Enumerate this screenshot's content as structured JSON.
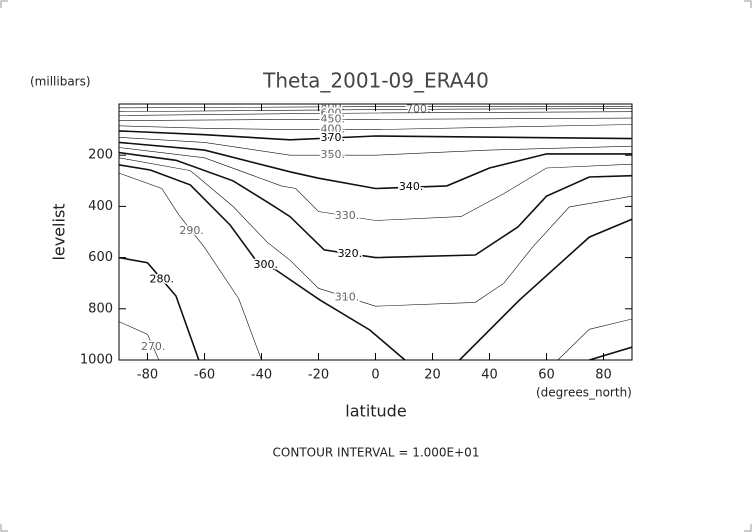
{
  "chart_data": {
    "type": "contour",
    "title": "Theta_2001-09_ERA40",
    "y_units": "(millibars)",
    "ylabel": "levelist",
    "xlabel": "latitude",
    "x_units": "(degrees_north)",
    "footnote": "CONTOUR INTERVAL = 1.000E+01",
    "xlim": [
      -90,
      90
    ],
    "xticks": [
      -80,
      -60,
      -40,
      -20,
      0,
      20,
      40,
      60,
      80
    ],
    "ylim": [
      1000,
      0
    ],
    "yticks": [
      200,
      400,
      600,
      800,
      1000
    ],
    "color": "#111",
    "levels": [
      800,
      700,
      600,
      450,
      400,
      370,
      350,
      340,
      330,
      320,
      310,
      300,
      290,
      280,
      270
    ],
    "level_labels": [
      "800.",
      "700.",
      "600.",
      "450.",
      "400.",
      "370.",
      "350.",
      "340.",
      "330.",
      "320.",
      "310.",
      "300.",
      "290.",
      "280.",
      "270."
    ],
    "bold": [
      false,
      false,
      false,
      false,
      false,
      true,
      false,
      true,
      false,
      true,
      false,
      true,
      false,
      true,
      false
    ],
    "contours": [
      {
        "lat": [
          -90,
          -30,
          0,
          90
        ],
        "p": [
          15,
          12,
          10,
          10
        ]
      },
      {
        "lat": [
          -90,
          0,
          30,
          90
        ],
        "p": [
          30,
          22,
          20,
          18
        ]
      },
      {
        "lat": [
          -90,
          -30,
          0,
          90
        ],
        "p": [
          45,
          38,
          35,
          30
        ]
      },
      {
        "lat": [
          -90,
          -30,
          0,
          90
        ],
        "p": [
          65,
          60,
          60,
          55
        ]
      },
      {
        "lat": [
          -90,
          -60,
          -30,
          0,
          90
        ],
        "p": [
          85,
          95,
          100,
          100,
          80
        ]
      },
      {
        "lat": [
          -90,
          -60,
          -30,
          0,
          90
        ],
        "p": [
          105,
          120,
          140,
          125,
          135
        ]
      },
      {
        "lat": [
          -90,
          -60,
          -30,
          0,
          40,
          90
        ],
        "p": [
          130,
          150,
          200,
          200,
          180,
          165
        ]
      },
      {
        "lat": [
          -90,
          -60,
          -30,
          -20,
          0,
          25,
          40,
          60,
          90
        ],
        "p": [
          150,
          180,
          265,
          290,
          330,
          320,
          250,
          195,
          195
        ]
      },
      {
        "lat": [
          -90,
          -60,
          -33,
          -28,
          -20,
          0,
          30,
          45,
          60,
          90
        ],
        "p": [
          170,
          210,
          320,
          330,
          420,
          455,
          440,
          350,
          250,
          235
        ]
      },
      {
        "lat": [
          -90,
          -70,
          -50,
          -37,
          -30,
          -18,
          0,
          35,
          50,
          60,
          75,
          90
        ],
        "p": [
          190,
          220,
          300,
          390,
          440,
          570,
          600,
          590,
          480,
          360,
          285,
          280
        ]
      },
      {
        "lat": [
          -90,
          -65,
          -50,
          -38,
          -30,
          -20,
          0,
          35,
          45,
          55,
          68,
          90
        ],
        "p": [
          210,
          260,
          400,
          540,
          610,
          720,
          790,
          775,
          700,
          560,
          402,
          360
        ]
      },
      {
        "lat": [
          -90,
          -79,
          -65,
          -51,
          -42,
          -35,
          -19.6,
          -2,
          10.3,
          null,
          29.5,
          50.6,
          75,
          90
        ],
        "p": [
          238,
          258,
          316,
          473,
          610,
          648,
          765,
          883,
          1000,
          null,
          1000,
          765,
          520,
          450
        ]
      },
      {
        "lat": [
          -90,
          -75,
          -69,
          -60,
          -48,
          -40,
          null,
          64,
          75,
          90
        ],
        "p": [
          270,
          330,
          433,
          560,
          760,
          1000,
          null,
          1000,
          880,
          840
        ]
      },
      {
        "lat": [
          -90,
          -80,
          -70,
          -62,
          null,
          75,
          90
        ],
        "p": [
          600,
          620,
          750,
          1000,
          null,
          1000,
          950
        ]
      },
      {
        "lat": [
          -90,
          -80,
          -76
        ],
        "p": [
          850,
          900,
          1000
        ]
      }
    ]
  }
}
